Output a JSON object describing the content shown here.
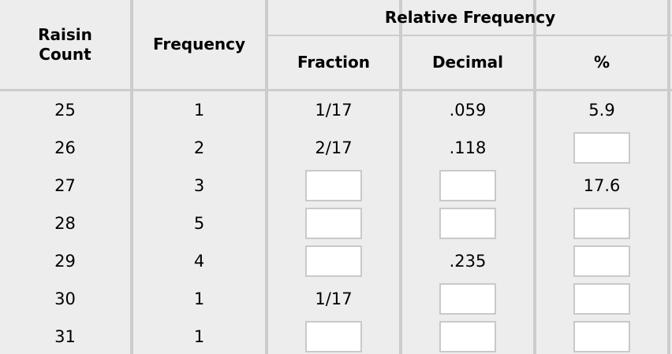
{
  "colors": {
    "background": "#ededed",
    "grid_line": "#cccccc",
    "text": "#000000",
    "input_background": "#ffffff",
    "input_border": "#c9c9c9"
  },
  "table": {
    "column_headers": {
      "raisin_count": "Raisin Count",
      "frequency": "Frequency",
      "relative_frequency": "Relative Frequency",
      "sub_fraction": "Fraction",
      "sub_decimal": "Decimal",
      "sub_percent": "%"
    },
    "rows": [
      {
        "raisin_count": "25",
        "frequency": "1",
        "fraction": {
          "given": true,
          "value": "1/17"
        },
        "decimal": {
          "given": true,
          "value": ".059"
        },
        "percent": {
          "given": true,
          "value": "5.9"
        }
      },
      {
        "raisin_count": "26",
        "frequency": "2",
        "fraction": {
          "given": true,
          "value": "2/17"
        },
        "decimal": {
          "given": true,
          "value": ".118"
        },
        "percent": {
          "given": false,
          "value": ""
        }
      },
      {
        "raisin_count": "27",
        "frequency": "3",
        "fraction": {
          "given": false,
          "value": ""
        },
        "decimal": {
          "given": false,
          "value": ""
        },
        "percent": {
          "given": true,
          "value": "17.6"
        }
      },
      {
        "raisin_count": "28",
        "frequency": "5",
        "fraction": {
          "given": false,
          "value": ""
        },
        "decimal": {
          "given": false,
          "value": ""
        },
        "percent": {
          "given": false,
          "value": ""
        }
      },
      {
        "raisin_count": "29",
        "frequency": "4",
        "fraction": {
          "given": false,
          "value": ""
        },
        "decimal": {
          "given": true,
          "value": ".235"
        },
        "percent": {
          "given": false,
          "value": ""
        }
      },
      {
        "raisin_count": "30",
        "frequency": "1",
        "fraction": {
          "given": true,
          "value": "1/17"
        },
        "decimal": {
          "given": false,
          "value": ""
        },
        "percent": {
          "given": false,
          "value": ""
        }
      },
      {
        "raisin_count": "31",
        "frequency": "1",
        "fraction": {
          "given": false,
          "value": ""
        },
        "decimal": {
          "given": false,
          "value": ""
        },
        "percent": {
          "given": false,
          "value": ""
        }
      }
    ]
  }
}
